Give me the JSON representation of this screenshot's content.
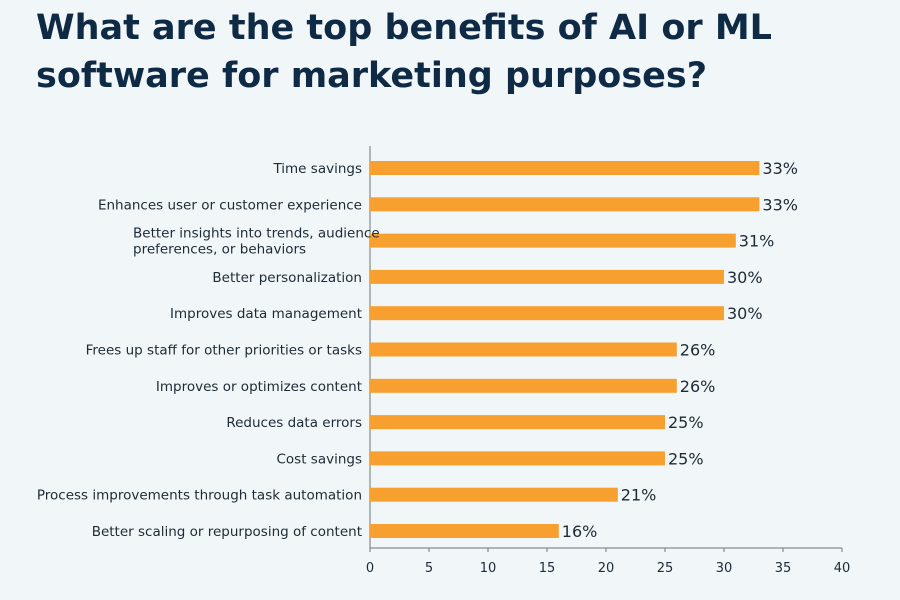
{
  "title_lines": [
    "What are the top benefits of AI or ML",
    "software for marketing purposes?"
  ],
  "chart_data": {
    "type": "bar",
    "orientation": "horizontal",
    "title": "What are the top benefits of AI or ML software for marketing purposes?",
    "categories": [
      [
        "Time savings"
      ],
      [
        "Enhances user or customer experience"
      ],
      [
        "Better insights into trends, audience",
        "preferences, or behaviors"
      ],
      [
        "Better personalization"
      ],
      [
        "Improves data management"
      ],
      [
        "Frees up staff for other priorities or tasks"
      ],
      [
        "Improves or optimizes content"
      ],
      [
        "Reduces data errors"
      ],
      [
        "Cost savings"
      ],
      [
        "Process improvements through task automation"
      ],
      [
        "Better scaling or repurposing of content"
      ]
    ],
    "values": [
      33,
      33,
      31,
      30,
      30,
      26,
      26,
      25,
      25,
      21,
      16
    ],
    "value_labels": [
      "33%",
      "33%",
      "31%",
      "30%",
      "30%",
      "26%",
      "26%",
      "25%",
      "25%",
      "21%",
      "16%"
    ],
    "xlim": [
      0,
      40
    ],
    "xticks": [
      0,
      5,
      10,
      15,
      20,
      25,
      30,
      35,
      40
    ],
    "xtick_labels": [
      "0",
      "5",
      "10",
      "15",
      "20",
      "25",
      "30",
      "35",
      "40"
    ],
    "grid": false,
    "bar_color": "#f7a030",
    "axis_color": "#6b7780"
  }
}
